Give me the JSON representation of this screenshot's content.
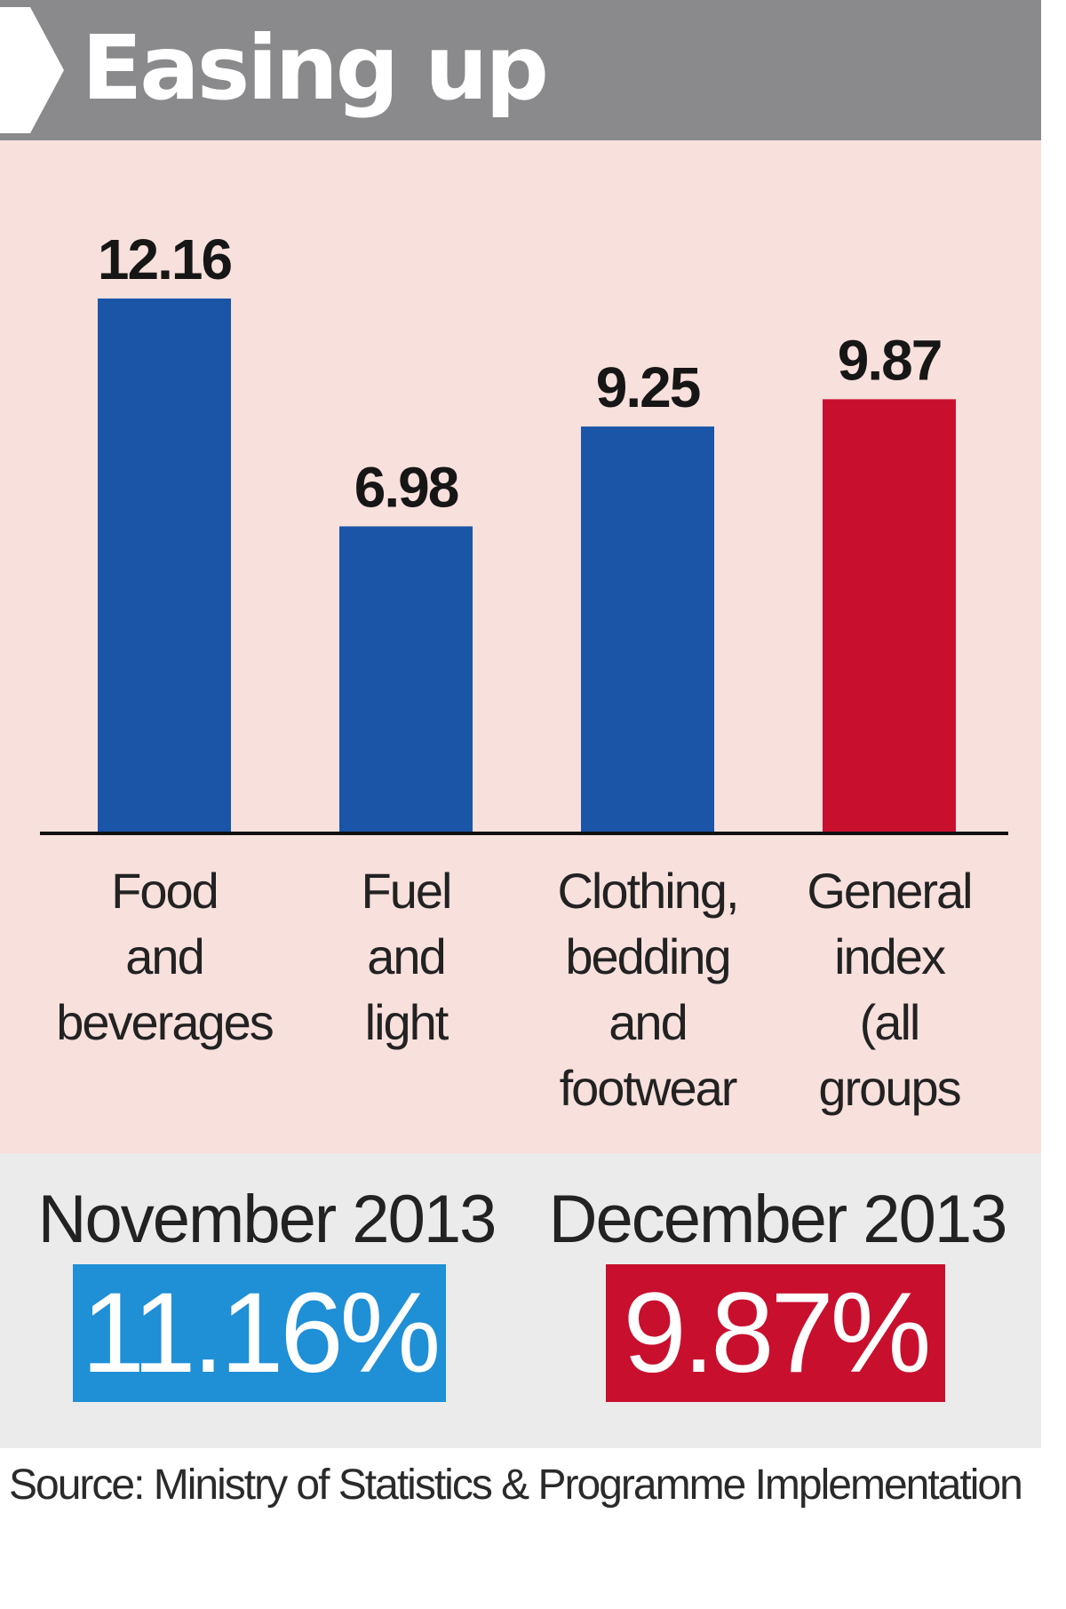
{
  "chart_data": {
    "type": "bar",
    "title": "Easing up",
    "categories": [
      "Food and beverages",
      "Fuel and light",
      "Clothing, bedding and footwear",
      "General index (all groups"
    ],
    "category_lines": [
      [
        "Food",
        "and",
        "beverages"
      ],
      [
        "Fuel",
        "and",
        "light"
      ],
      [
        "Clothing,",
        "bedding",
        "and",
        "footwear"
      ],
      [
        "General",
        "index",
        "(all",
        "groups"
      ]
    ],
    "values": [
      12.16,
      6.98,
      9.25,
      9.87
    ],
    "value_labels": [
      "12.16",
      "6.98",
      "9.25",
      "9.87"
    ],
    "bar_colors": [
      "#1a55a8",
      "#1a55a8",
      "#1a55a8",
      "#c8102e"
    ],
    "ylim": [
      0,
      12.16
    ],
    "xlabel": "",
    "ylabel": "",
    "grid": false
  },
  "summary": {
    "items": [
      {
        "period": "November 2013",
        "rate": "11.16%",
        "color": "#1f8fd6"
      },
      {
        "period": "December 2013",
        "rate": "9.87%",
        "color": "#c8102e"
      }
    ]
  },
  "source": "Source: Ministry of Statistics & Programme Implementation",
  "colors": {
    "header": "#8a8a8c",
    "chart_background": "#f8e0dc",
    "summary_background": "#ebebeb",
    "axis": "#111111"
  }
}
